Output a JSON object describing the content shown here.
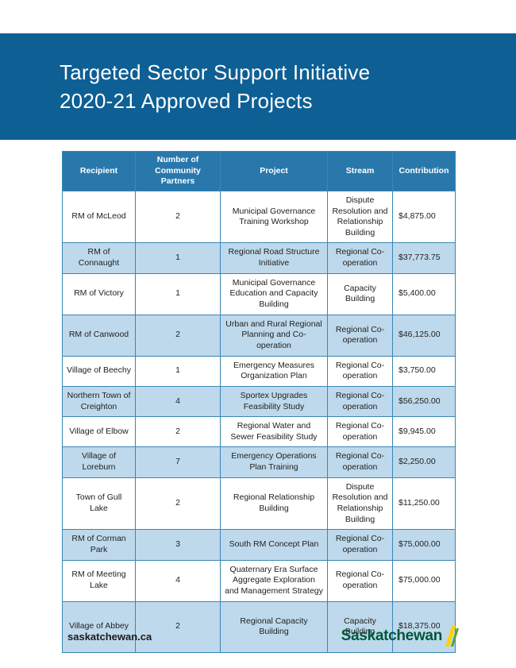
{
  "page": {
    "title_line1": "Targeted Sector Support Initiative",
    "title_line2": "2020-21 Approved Projects",
    "footer_url": "saskatchewan.ca",
    "logo_text": "Saskatchewan"
  },
  "colors": {
    "banner_bg": "#0d5f94",
    "table_header_bg": "#2878ac",
    "table_border": "#3a86b6",
    "row_alt_bg": "#bed9eb",
    "logo_green": "#00563c",
    "sheaf_yellow": "#ffd200",
    "sheaf_green": "#5a9e32",
    "body_text": "#222222"
  },
  "table": {
    "columns": [
      "Recipient",
      "Number of Community Partners",
      "Project",
      "Stream",
      "Contribution"
    ],
    "rows": [
      {
        "recipient": "RM of McLeod",
        "partners": "2",
        "project": "Municipal Governance Training Workshop",
        "stream": "Dispute Resolution and Relationship Building",
        "contribution": "$4,875.00"
      },
      {
        "recipient": "RM of Connaught",
        "partners": "1",
        "project": "Regional Road Structure Initiative",
        "stream": "Regional Co-operation",
        "contribution": "$37,773.75"
      },
      {
        "recipient": "RM of Victory",
        "partners": "1",
        "project": "Municipal Governance Education and Capacity Building",
        "stream": "Capacity Building",
        "contribution": "$5,400.00"
      },
      {
        "recipient": "RM of Canwood",
        "partners": "2",
        "project": "Urban and Rural Regional Planning and Co-operation",
        "stream": "Regional Co-operation",
        "contribution": "$46,125.00"
      },
      {
        "recipient": "Village of Beechy",
        "partners": "1",
        "project": "Emergency Measures Organization Plan",
        "stream": "Regional Co-operation",
        "contribution": "$3,750.00"
      },
      {
        "recipient": "Northern Town of Creighton",
        "partners": "4",
        "project": "Sportex Upgrades Feasibility Study",
        "stream": "Regional Co-operation",
        "contribution": "$56,250.00"
      },
      {
        "recipient": "Village of Elbow",
        "partners": "2",
        "project": "Regional Water and Sewer Feasibility Study",
        "stream": "Regional Co-operation",
        "contribution": "$9,945.00"
      },
      {
        "recipient": "Village of Loreburn",
        "partners": "7",
        "project": "Emergency Operations Plan Training",
        "stream": "Regional Co-operation",
        "contribution": "$2,250.00"
      },
      {
        "recipient": "Town of Gull Lake",
        "partners": "2",
        "project": "Regional Relationship Building",
        "stream": "Dispute Resolution and Relationship Building",
        "contribution": "$11,250.00"
      },
      {
        "recipient": "RM of Corman Park",
        "partners": "3",
        "project": "South RM Concept Plan",
        "stream": "Regional Co-operation",
        "contribution": "$75,000.00"
      },
      {
        "recipient": "RM of Meeting Lake",
        "partners": "4",
        "project": "Quaternary Era Surface Aggregate Exploration and Management Strategy",
        "stream": "Regional Co-operation",
        "contribution": "$75,000.00"
      },
      {
        "recipient": "Village of Abbey",
        "partners": "2",
        "project": "Regional Capacity Building",
        "stream": "Capacity Building",
        "contribution": "$18,375.00"
      }
    ]
  }
}
